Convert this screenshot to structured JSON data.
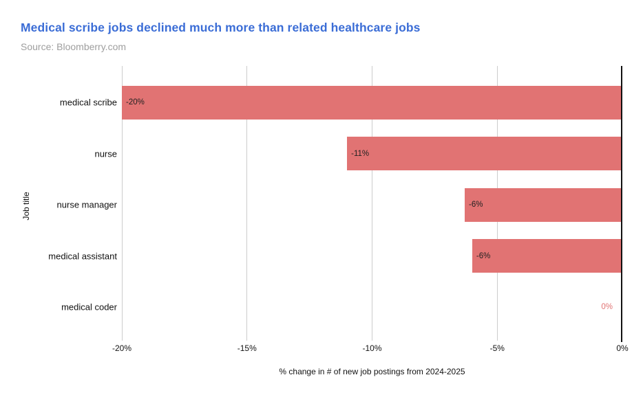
{
  "header": {
    "title": "Medical scribe jobs declined much more than related healthcare jobs",
    "source": "Source: Bloomberry.com"
  },
  "colors": {
    "title_blue": "#3B6DD6",
    "source_gray": "#9E9E9E",
    "bar_red": "#E17373",
    "gridline_gray": "#CCCCCC",
    "axis_black": "#111111",
    "label_dark": "#212121"
  },
  "chart_data": {
    "type": "bar",
    "orientation": "horizontal",
    "title": "Medical scribe jobs declined much more than related healthcare jobs",
    "subtitle": "Source: Bloomberry.com",
    "categories": [
      "medical scribe",
      "nurse",
      "nurse manager",
      "medical assistant",
      "medical coder"
    ],
    "values": [
      -20,
      -11,
      -6.3,
      -6,
      0
    ],
    "value_labels": [
      "-20%",
      "-11%",
      "-6%",
      "-6%",
      "0%"
    ],
    "xlabel": "% change in # of new job postings from 2024-2025",
    "ylabel": "Job title",
    "xlim": [
      -20,
      0
    ],
    "xtick_values": [
      -20,
      -15,
      -10,
      -5,
      0
    ],
    "xtick_labels": [
      "-20%",
      "-15%",
      "-10%",
      "-5%",
      "0%"
    ],
    "grid": "vertical-only",
    "legend": "none",
    "bar_color": "#E17373",
    "zero_axis": "solid dark line at 0%"
  }
}
